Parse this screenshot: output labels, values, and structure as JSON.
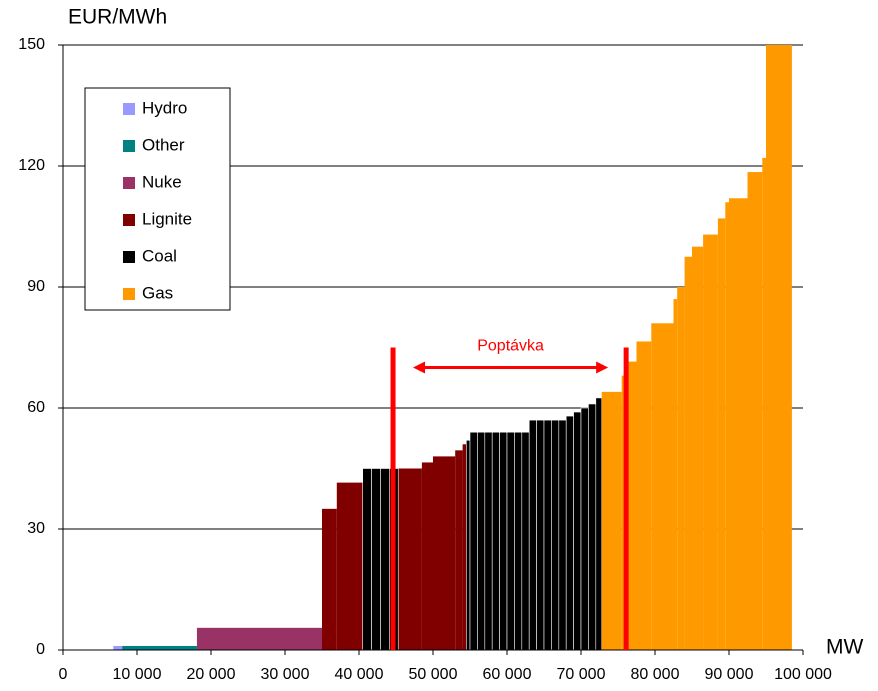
{
  "chart_data": {
    "type": "step-blocks",
    "y_label": "EUR/MWh",
    "x_label": "MW",
    "xlim": [
      0,
      100000
    ],
    "ylim": [
      0,
      150
    ],
    "xticks": [
      0,
      {
        "value": 10000,
        "label": "10 000"
      },
      {
        "value": 20000,
        "label": "20 000"
      },
      {
        "value": 30000,
        "label": "30 000"
      },
      {
        "value": 40000,
        "label": "40 000"
      },
      {
        "value": 50000,
        "label": "50 000"
      },
      {
        "value": 60000,
        "label": "60 000"
      },
      {
        "value": 70000,
        "label": "70 000"
      },
      {
        "value": 80000,
        "label": "80 000"
      },
      {
        "value": 90000,
        "label": "90 000"
      },
      {
        "value": 100000,
        "label": "100 000"
      }
    ],
    "yticks": [
      0,
      30,
      60,
      90,
      120,
      150
    ],
    "grid": true,
    "legend": "upper left",
    "series": [
      {
        "name": "Hydro",
        "color": "#9999ff",
        "x": [
          6800
        ],
        "widths": [
          1200
        ],
        "values": [
          1
        ]
      },
      {
        "name": "Other",
        "color": "#008080",
        "x": [
          8000
        ],
        "widths": [
          10100
        ],
        "values": [
          1
        ]
      },
      {
        "name": "Nuke",
        "color": "#993366",
        "x": [
          18100
        ],
        "widths": [
          16900
        ],
        "values": [
          5.5
        ]
      },
      {
        "name": "Lignite",
        "color": "#800000",
        "x": [
          35000,
          37000,
          45300,
          48500,
          50000,
          53000,
          54000
        ],
        "widths": [
          2000,
          3500,
          3200,
          1500,
          3000,
          1000,
          500
        ],
        "values": [
          35,
          41.5,
          45,
          46.5,
          48,
          49.5,
          51
        ]
      },
      {
        "name": "Coal",
        "color": "#000000",
        "x": [
          40500,
          41700,
          42900,
          44100,
          54500,
          55000,
          56000,
          57000,
          58000,
          59000,
          60000,
          61000,
          62000,
          63000,
          64000,
          65000,
          66000,
          67000,
          68000,
          69000,
          70000,
          71000,
          72000
        ],
        "widths": [
          1200,
          1200,
          1200,
          1200,
          500,
          1000,
          1000,
          1000,
          1000,
          1000,
          1000,
          1000,
          1000,
          1000,
          1000,
          1000,
          1000,
          1000,
          1000,
          1000,
          1000,
          1000,
          800
        ],
        "values": [
          45,
          45,
          45,
          45,
          52,
          54,
          54,
          54,
          54,
          54,
          54,
          54,
          54,
          57,
          57,
          57,
          57,
          57,
          58,
          59,
          60,
          61,
          62.5
        ]
      },
      {
        "name": "Gas",
        "color": "#ff9900",
        "x": [
          72800,
          75500,
          76000,
          77500,
          79500,
          82500,
          83000,
          84000,
          85000,
          86500,
          88500,
          89500,
          90000,
          92500,
          94500,
          95000
        ],
        "widths": [
          2700,
          500,
          1500,
          2000,
          3000,
          500,
          1000,
          1000,
          1500,
          2000,
          1000,
          500,
          2500,
          2000,
          500,
          3500
        ],
        "values": [
          64,
          68,
          71.5,
          76.5,
          81,
          87,
          90,
          97.5,
          100,
          103,
          107,
          111,
          112,
          118.5,
          122,
          150
        ]
      }
    ],
    "demand": {
      "label": "Poptávka",
      "color": "#ff0000",
      "x": [
        44600,
        76100
      ],
      "top": 75
    }
  }
}
